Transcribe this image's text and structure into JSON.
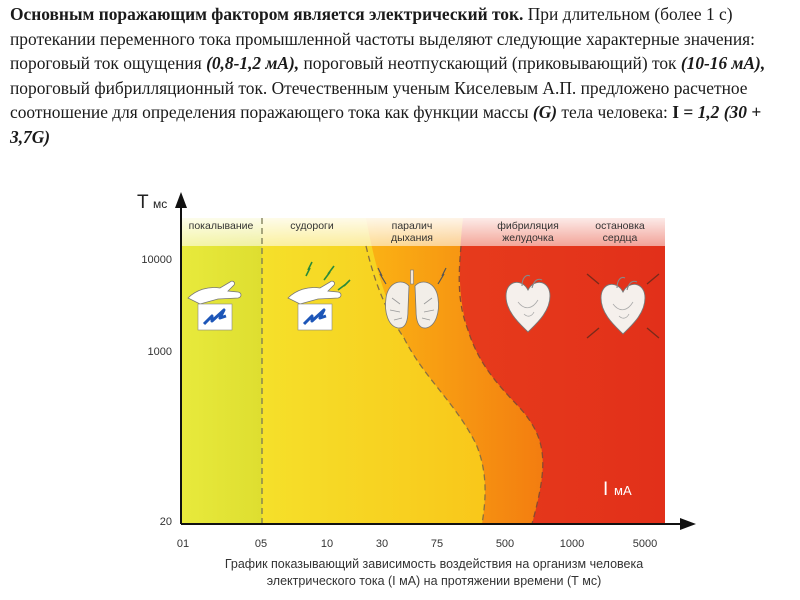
{
  "intro": {
    "lead_bold": "Основным поражающим фактором является электрический ток.",
    "t1": " При длительном (более 1 с) протекании переменного тока промышленной частоты выделяют следующие характерные значения: пороговый ток ощущения ",
    "v1": "(0,8-1,2 мА),",
    "t2": " пороговый неотпускающий (приковывающий) ток ",
    "v2": "(10-16 мА),",
    "t3": " пороговый фибрилляционный ток. Отечественным ученым Киселевым А.П. предложено расчетное соотношение для определения поражающего тока как функции массы ",
    "v3": "(G)",
    "t4": " тела человека: ",
    "formula_i": "I",
    "formula_eq": " = ",
    "formula_rest": "1,2 (30 + 3,7G)"
  },
  "diagram": {
    "y_axis_label": "T",
    "y_axis_unit": "мс",
    "x_axis_label": "I",
    "x_axis_unit": "мА",
    "y_ticks": [
      "10000",
      "1000",
      "20"
    ],
    "x_ticks": [
      "01",
      "05",
      "10",
      "30",
      "75",
      "500",
      "1000",
      "5000"
    ],
    "zones": [
      {
        "label_1": "покалывание",
        "label_2": ""
      },
      {
        "label_1": "судороги",
        "label_2": ""
      },
      {
        "label_1": "паралич",
        "label_2": "дыхания"
      },
      {
        "label_1": "фибриляция",
        "label_2": "желудочка"
      },
      {
        "label_1": "остановка",
        "label_2": "сердца"
      }
    ],
    "zone_colors": [
      "#e2e63a",
      "#f8cc1e",
      "#f79a12",
      "#ea3a1c"
    ],
    "caption_line1": "График показывающий зависимость воздействия на организм человека",
    "caption_line2": "электрического тока (I мА) на протяжении времени (Т мс)",
    "icons": [
      "hand-tingling-icon",
      "hand-cramp-icon",
      "lungs-icon",
      "heart-fibrillation-icon",
      "heart-stop-icon"
    ]
  }
}
